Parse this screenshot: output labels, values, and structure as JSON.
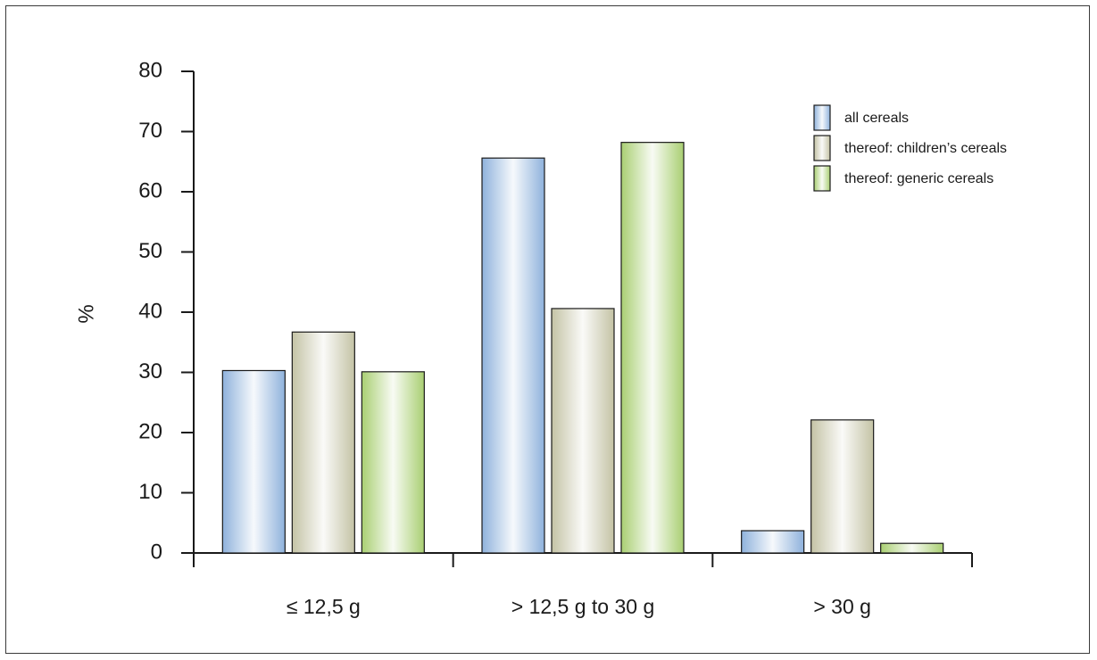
{
  "chart_data": {
    "type": "bar",
    "title": "",
    "ylabel": "%",
    "xlabel": "",
    "ylim": [
      0,
      80
    ],
    "yticks": [
      0,
      10,
      20,
      30,
      40,
      50,
      60,
      70,
      80
    ],
    "categories": [
      "≤ 12,5 g",
      "> 12,5 g to 30 g",
      "> 30 g"
    ],
    "series": [
      {
        "name": "all cereals",
        "values": [
          30.3,
          65.6,
          3.7
        ],
        "color": "#8fb2dc"
      },
      {
        "name": "thereof: children’s cereals",
        "values": [
          36.7,
          40.6,
          22.1
        ],
        "color": "#c4c3a5"
      },
      {
        "name": "thereof: generic cereals",
        "values": [
          30.1,
          68.2,
          1.6
        ],
        "color": "#a9cf72"
      }
    ],
    "legend_position": "top-right",
    "grid": false
  }
}
